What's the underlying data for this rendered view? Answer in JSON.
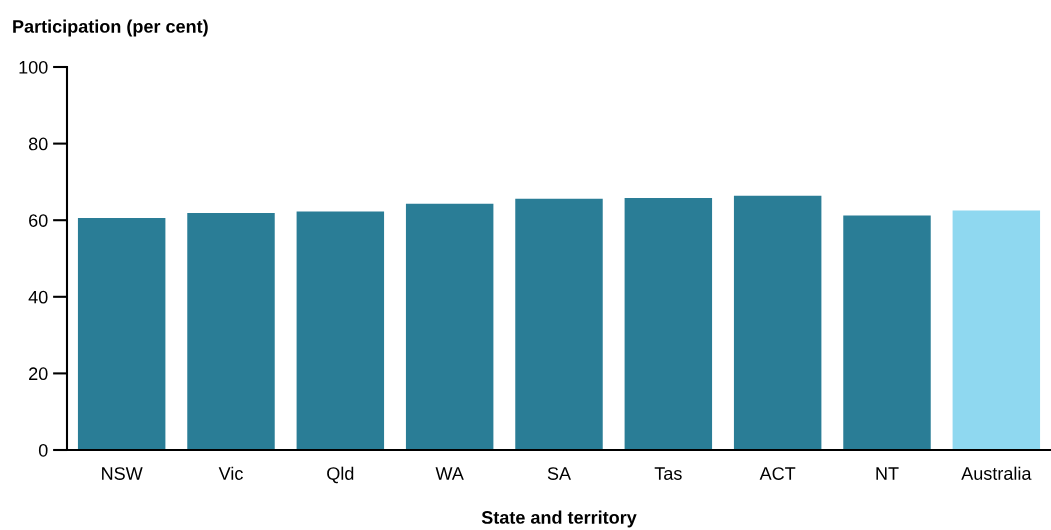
{
  "chart_data": {
    "type": "bar",
    "ylabel": "Participation (per cent)",
    "xlabel": "State and territory",
    "categories": [
      "NSW",
      "Vic",
      "Qld",
      "WA",
      "SA",
      "Tas",
      "ACT",
      "NT",
      "Australia"
    ],
    "values": [
      60.6,
      61.9,
      62.3,
      64.3,
      65.6,
      65.8,
      66.4,
      61.2,
      62.5
    ],
    "colors": [
      "#2a7d96",
      "#2a7d96",
      "#2a7d96",
      "#2a7d96",
      "#2a7d96",
      "#2a7d96",
      "#2a7d96",
      "#2a7d96",
      "#8fd8f0"
    ],
    "ylim": [
      0,
      100
    ],
    "yticks": [
      0,
      20,
      40,
      60,
      80,
      100
    ],
    "grid": false,
    "legend": false
  }
}
